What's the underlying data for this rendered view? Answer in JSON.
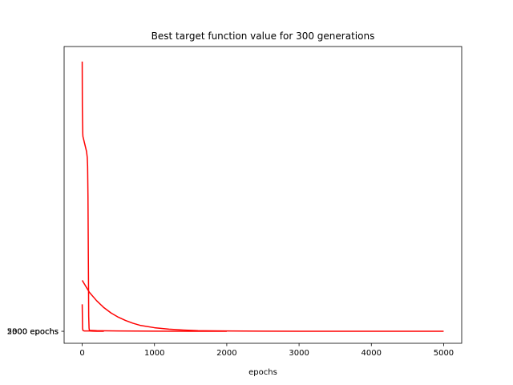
{
  "chart_data": {
    "type": "line",
    "title": "Best target function value for 300 generations",
    "xlabel": "epochs",
    "ylabel": "",
    "xlim": [
      -250,
      5250
    ],
    "ylim": [
      -0.04,
      0.95
    ],
    "x_ticks": [
      0,
      1000,
      2000,
      3000,
      4000,
      5000
    ],
    "y_ticks": [
      {
        "value": 0,
        "labels": [
          "300 epochs",
          "2000 epochs",
          "5000 epochs"
        ]
      }
    ],
    "grid": false,
    "legend": "none",
    "series": [
      {
        "color": "#ff0000",
        "x": [
          0,
          5,
          10,
          20,
          30,
          40,
          60,
          70,
          80,
          90,
          95,
          100,
          150,
          200,
          300
        ],
        "y": [
          0.09,
          0.01,
          0.003,
          0.002,
          0.001,
          0.001,
          0.001,
          0.001,
          0.001,
          0.001,
          0.001,
          0.001,
          0.0005,
          0.0003,
          0.0
        ]
      },
      {
        "color": "#ff0000",
        "x": [
          0,
          2,
          5,
          8,
          10,
          20,
          40,
          60,
          70,
          75,
          80,
          85,
          90,
          95,
          100,
          200,
          500,
          1000,
          1500,
          2000
        ],
        "y": [
          0.9,
          0.75,
          0.7,
          0.66,
          0.65,
          0.64,
          0.62,
          0.6,
          0.58,
          0.55,
          0.45,
          0.25,
          0.05,
          0.01,
          0.003,
          0.002,
          0.001,
          0.0005,
          0.0002,
          0.0
        ]
      },
      {
        "color": "#ff0000",
        "x": [
          0,
          100,
          200,
          300,
          400,
          500,
          600,
          700,
          800,
          1000,
          1200,
          1400,
          1600,
          2000,
          2500,
          3000,
          4000,
          5000
        ],
        "y": [
          0.17,
          0.13,
          0.102,
          0.079,
          0.061,
          0.047,
          0.036,
          0.027,
          0.02,
          0.012,
          0.007,
          0.004,
          0.002,
          0.001,
          0.0005,
          0.0003,
          0.0001,
          0.0
        ]
      }
    ]
  }
}
